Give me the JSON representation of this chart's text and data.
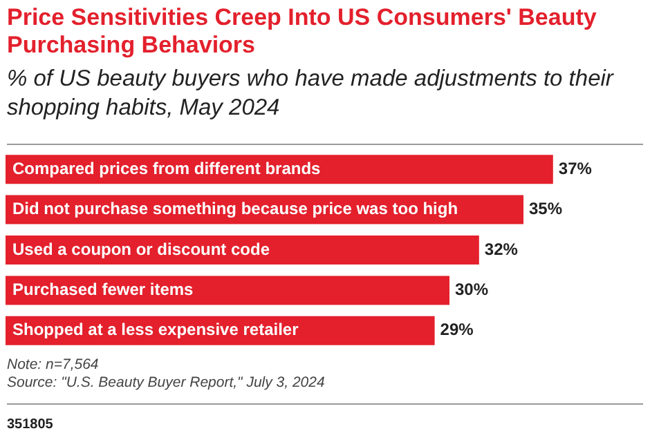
{
  "chart_data": {
    "type": "bar",
    "orientation": "horizontal",
    "title": "Price Sensitivities Creep Into US Consumers' Beauty Purchasing Behaviors",
    "subtitle": "% of US beauty buyers who have made adjustments to their shopping habits, May 2024",
    "categories": [
      "Compared prices from different brands",
      "Did not purchase something because price was too high",
      "Used a coupon or discount code",
      "Purchased fewer items",
      "Shopped at a less expensive retailer"
    ],
    "values": [
      37,
      35,
      32,
      30,
      29
    ],
    "value_labels": [
      "37%",
      "35%",
      "32%",
      "30%",
      "29%"
    ],
    "color": "#e3202c",
    "legend": false,
    "tick_labels": false,
    "annotations": [
      "Note: n=7,564",
      "Source: \"U.S. Beauty Buyer Report,\" July 3, 2024",
      "351805"
    ]
  }
}
